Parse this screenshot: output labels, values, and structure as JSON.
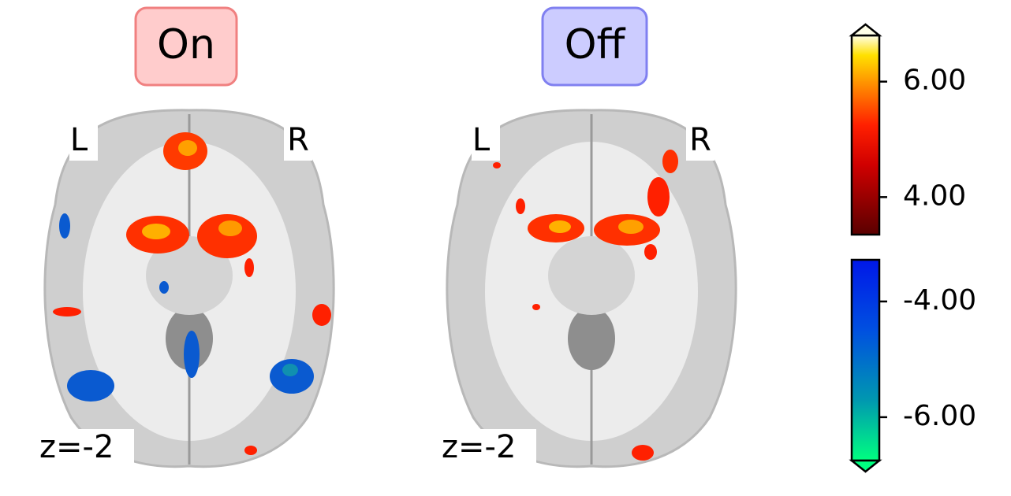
{
  "panels": [
    {
      "title": "On",
      "left_label": "L",
      "right_label": "R",
      "slice_label": "z=-2"
    },
    {
      "title": "Off",
      "left_label": "L",
      "right_label": "R",
      "slice_label": "z=-2"
    }
  ],
  "colorbars": [
    {
      "lim": [
        3.35,
        6.8
      ],
      "ticks": [
        {
          "value": 6,
          "label": "6.00"
        },
        {
          "value": 4,
          "label": "4.00"
        }
      ]
    },
    {
      "lim": [
        -6.75,
        -3.28
      ],
      "ticks": [
        {
          "value": -4,
          "label": "-4.00"
        },
        {
          "value": -6,
          "label": "-6.00"
        }
      ]
    }
  ]
}
